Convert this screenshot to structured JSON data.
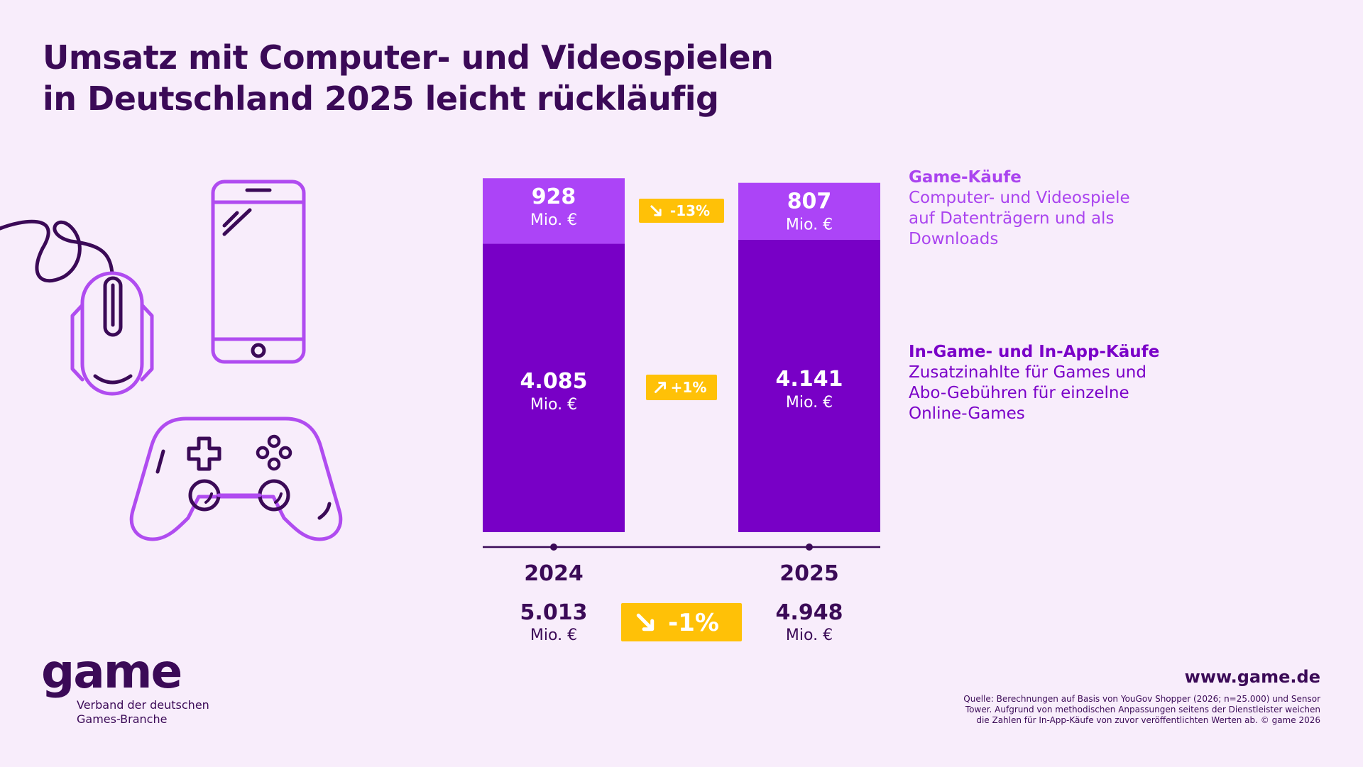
{
  "title_lines": [
    "Umsatz mit Computer- und Videospielen",
    "in Deutschland 2025 leicht rückläufig"
  ],
  "colors": {
    "game_purchases": "#ac44f7",
    "ingame_purchases": "#7800c6",
    "badge": "#ffc107",
    "text_dark": "#3b0a57",
    "background": "#f8edfb"
  },
  "legend": {
    "game": {
      "head": "Game-Käufe",
      "lines": [
        "Computer- und Videospiele",
        "auf Datenträgern und als",
        "Downloads"
      ]
    },
    "ingame": {
      "head": "In-Game- und In-App-Käufe",
      "lines": [
        "Zusatzinahlte für Games und",
        "Abo-Gebühren für einzelne",
        "Online-Games"
      ]
    }
  },
  "chart_data": {
    "type": "bar",
    "stacked": true,
    "categories": [
      "2024",
      "2025"
    ],
    "series": [
      {
        "key": "ingame",
        "values": [
          4085,
          4141
        ],
        "labels": [
          "4.085",
          "4.141"
        ]
      },
      {
        "key": "game",
        "values": [
          928,
          807
        ],
        "labels": [
          "928",
          "807"
        ]
      }
    ],
    "unit": "Mio. €",
    "totals": {
      "values": [
        5013,
        4948
      ],
      "labels": [
        "5.013",
        "4.948"
      ]
    },
    "changes": {
      "game": "-13%",
      "ingame": "+1%",
      "total": "-1%"
    }
  },
  "logo": {
    "word": "game",
    "sub_lines": [
      "Verband der deutschen",
      "Games-Branche"
    ]
  },
  "website": "www.game.de",
  "source": "Quelle: Berechnungen auf Basis von YouGov Shopper (2026; n=25.000) und Sensor Tower. Aufgrund von methodischen Anpassungen seitens der Dienstleister weichen die Zahlen für In-App-Käufe von zuvor veröffentlichten Werten ab. © game 2026",
  "icons": [
    "mouse-icon",
    "smartphone-icon",
    "gamepad-icon"
  ]
}
